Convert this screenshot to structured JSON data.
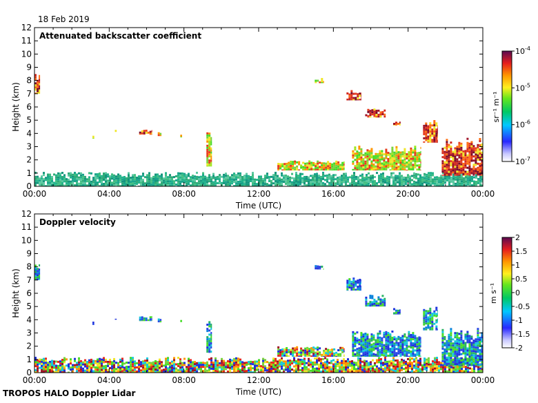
{
  "date_label": "18 Feb 2019",
  "footer_label": "TROPOS HALO Doppler Lidar",
  "colors": {
    "background": "#ffffff",
    "axis": "#000000",
    "low_cloud_teal": "#1aa58c",
    "cloud_red": "#d2281e",
    "cloud_dark": "#780a2a",
    "cloud_yellow": "#f0e628",
    "cloud_green": "#46dc28"
  },
  "chart_data": [
    {
      "type": "heatmap",
      "title": "Attenuated backscatter coefficient",
      "xlabel": "Time (UTC)",
      "ylabel": "Height (km)",
      "x_ticks": [
        "00:00",
        "04:00",
        "08:00",
        "12:00",
        "16:00",
        "20:00",
        "00:00"
      ],
      "x_tick_hours": [
        0,
        4,
        8,
        12,
        16,
        20,
        24
      ],
      "xlim_hours": [
        0,
        24
      ],
      "ylim": [
        0,
        12
      ],
      "y_ticks": [
        "0",
        "1",
        "2",
        "3",
        "4",
        "5",
        "6",
        "7",
        "8",
        "9",
        "10",
        "11",
        "12"
      ],
      "colorbar": {
        "label": "sr⁻¹ m⁻¹",
        "scale": "log",
        "range": [
          1e-07,
          0.0001
        ],
        "tick_base": "10",
        "tick_exponents": [
          "-4",
          "-5",
          "-6",
          "-7"
        ]
      },
      "features": [
        {
          "name": "boundary layer aerosol",
          "start_h": 0.0,
          "end_h": 24.0,
          "bottom_km": 0.0,
          "top_km": 1.1,
          "level": "low"
        },
        {
          "name": "early cloud",
          "start_h": 0.0,
          "end_h": 0.3,
          "bottom_km": 7.0,
          "top_km": 8.6,
          "level": "high"
        },
        {
          "name": "thin cloud 3.7 km",
          "start_h": 3.1,
          "end_h": 3.2,
          "bottom_km": 3.6,
          "top_km": 3.9,
          "level": "mid"
        },
        {
          "name": "thin cloud 4.2 km",
          "start_h": 4.3,
          "end_h": 4.4,
          "bottom_km": 4.0,
          "top_km": 4.3,
          "level": "mid"
        },
        {
          "name": "thin cloud 4.1 km",
          "start_h": 5.6,
          "end_h": 6.3,
          "bottom_km": 3.9,
          "top_km": 4.3,
          "level": "high"
        },
        {
          "name": "thin cloud 4.0 km",
          "start_h": 6.6,
          "end_h": 6.8,
          "bottom_km": 3.8,
          "top_km": 4.1,
          "level": "mid"
        },
        {
          "name": "thin cloud 3.8 km",
          "start_h": 7.8,
          "end_h": 7.9,
          "bottom_km": 3.7,
          "top_km": 4.0,
          "level": "mid"
        },
        {
          "name": "virga 9 UTC",
          "start_h": 9.2,
          "end_h": 9.5,
          "bottom_km": 1.5,
          "top_km": 4.2,
          "level": "mid"
        },
        {
          "name": "descending cirrus 1",
          "start_h": 15.0,
          "end_h": 15.5,
          "bottom_km": 7.8,
          "top_km": 8.2,
          "level": "mid"
        },
        {
          "name": "descending cirrus 2",
          "start_h": 16.7,
          "end_h": 17.5,
          "bottom_km": 6.5,
          "top_km": 7.3,
          "level": "high"
        },
        {
          "name": "descending cirrus 3",
          "start_h": 17.7,
          "end_h": 18.8,
          "bottom_km": 5.2,
          "top_km": 5.9,
          "level": "high"
        },
        {
          "name": "descending cirrus 4",
          "start_h": 19.2,
          "end_h": 19.6,
          "bottom_km": 4.6,
          "top_km": 4.9,
          "level": "high"
        },
        {
          "name": "mid cloud 20-21 UTC",
          "start_h": 20.8,
          "end_h": 21.6,
          "bottom_km": 3.3,
          "top_km": 5.1,
          "level": "high"
        },
        {
          "name": "low cloud deck",
          "start_h": 17.0,
          "end_h": 20.7,
          "bottom_km": 1.2,
          "top_km": 3.1,
          "level": "mid"
        },
        {
          "name": "late cloud layer",
          "start_h": 21.8,
          "end_h": 24.0,
          "bottom_km": 0.8,
          "top_km": 3.7,
          "level": "high"
        },
        {
          "name": "afternoon clouds",
          "start_h": 13.0,
          "end_h": 16.6,
          "bottom_km": 1.2,
          "top_km": 2.0,
          "level": "mid"
        }
      ]
    },
    {
      "type": "heatmap",
      "title": "Doppler velocity",
      "xlabel": "Time (UTC)",
      "ylabel": "Height (km)",
      "x_ticks": [
        "00:00",
        "04:00",
        "08:00",
        "12:00",
        "16:00",
        "20:00",
        "00:00"
      ],
      "x_tick_hours": [
        0,
        4,
        8,
        12,
        16,
        20,
        24
      ],
      "xlim_hours": [
        0,
        24
      ],
      "ylim": [
        0,
        12
      ],
      "y_ticks": [
        "0",
        "1",
        "2",
        "3",
        "4",
        "5",
        "6",
        "7",
        "8",
        "9",
        "10",
        "11",
        "12"
      ],
      "colorbar": {
        "label": "m s⁻¹",
        "scale": "linear",
        "range": [
          -2,
          2
        ],
        "ticks": [
          "2",
          "1.5",
          "1",
          "0.5",
          "0",
          "-0.5",
          "-1",
          "-1.5",
          "-2"
        ],
        "tick_values": [
          2,
          1.5,
          1,
          0.5,
          0,
          -0.5,
          -1,
          -1.5,
          -2
        ]
      },
      "features": [
        {
          "name": "boundary layer turbulence",
          "start_h": 0.0,
          "end_h": 24.0,
          "bottom_km": 0.0,
          "top_km": 1.2,
          "level": "mixed"
        },
        {
          "name": "early cloud",
          "start_h": 0.0,
          "end_h": 0.3,
          "bottom_km": 7.0,
          "top_km": 8.5,
          "level": "down"
        },
        {
          "name": "thin cloud 3.7 km",
          "start_h": 3.1,
          "end_h": 3.2,
          "bottom_km": 3.6,
          "top_km": 3.9,
          "level": "down"
        },
        {
          "name": "thin cloud 4.2 km",
          "start_h": 4.3,
          "end_h": 4.4,
          "bottom_km": 4.0,
          "top_km": 4.3,
          "level": "down"
        },
        {
          "name": "thin cloud 4.1 km",
          "start_h": 5.6,
          "end_h": 6.3,
          "bottom_km": 3.9,
          "top_km": 4.3,
          "level": "down"
        },
        {
          "name": "thin cloud 4.0 km",
          "start_h": 6.6,
          "end_h": 6.8,
          "bottom_km": 3.8,
          "top_km": 4.1,
          "level": "down"
        },
        {
          "name": "thin cloud 3.8 km",
          "start_h": 7.8,
          "end_h": 7.9,
          "bottom_km": 3.7,
          "top_km": 4.0,
          "level": "down"
        },
        {
          "name": "virga 9 UTC",
          "start_h": 9.2,
          "end_h": 9.5,
          "bottom_km": 1.5,
          "top_km": 4.2,
          "level": "down"
        },
        {
          "name": "descending cirrus 1",
          "start_h": 15.0,
          "end_h": 15.5,
          "bottom_km": 7.8,
          "top_km": 8.2,
          "level": "down"
        },
        {
          "name": "descending cirrus 2",
          "start_h": 16.7,
          "end_h": 17.5,
          "bottom_km": 6.2,
          "top_km": 7.3,
          "level": "down"
        },
        {
          "name": "descending cirrus 3",
          "start_h": 17.7,
          "end_h": 18.8,
          "bottom_km": 5.0,
          "top_km": 5.9,
          "level": "down"
        },
        {
          "name": "descending cirrus 4",
          "start_h": 19.2,
          "end_h": 19.6,
          "bottom_km": 4.4,
          "top_km": 4.9,
          "level": "down"
        },
        {
          "name": "mid cloud 20-21 UTC",
          "start_h": 20.8,
          "end_h": 21.6,
          "bottom_km": 3.2,
          "top_km": 5.0,
          "level": "down"
        },
        {
          "name": "low cloud deck",
          "start_h": 17.0,
          "end_h": 20.7,
          "bottom_km": 1.2,
          "top_km": 3.2,
          "level": "down"
        },
        {
          "name": "late cloud layer",
          "start_h": 21.8,
          "end_h": 24.0,
          "bottom_km": 0.5,
          "top_km": 3.5,
          "level": "down"
        },
        {
          "name": "afternoon clouds",
          "start_h": 13.0,
          "end_h": 16.6,
          "bottom_km": 1.2,
          "top_km": 2.0,
          "level": "mixed"
        }
      ]
    }
  ]
}
